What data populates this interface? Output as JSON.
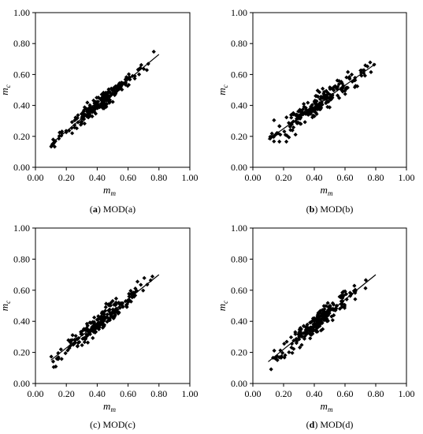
{
  "chart_data": [
    {
      "id": "a",
      "type": "scatter",
      "caption_letter": "a",
      "caption_text": "MOD(a)",
      "caption_letter_bold": true,
      "xlabel_main": "m",
      "xlabel_sub": "m",
      "ylabel_main": "m",
      "ylabel_sub": "c",
      "xlim": [
        0,
        1
      ],
      "ylim": [
        0,
        1
      ],
      "xticks": [
        "0.00",
        "0.20",
        "0.40",
        "0.60",
        "0.80",
        "1.00"
      ],
      "yticks": [
        "0.00",
        "0.20",
        "0.40",
        "0.60",
        "0.80",
        "1.00"
      ],
      "trendline": {
        "x1": 0.1,
        "y1": 0.15,
        "x2": 0.8,
        "y2": 0.73
      },
      "spread": 0.052,
      "seed": 11
    },
    {
      "id": "b",
      "type": "scatter",
      "caption_letter": "b",
      "caption_text": "MOD(b)",
      "caption_letter_bold": true,
      "xlabel_main": "m",
      "xlabel_sub": "m",
      "ylabel_main": "m",
      "ylabel_sub": "c",
      "xlim": [
        0,
        1
      ],
      "ylim": [
        0,
        1
      ],
      "xticks": [
        "0.00",
        "0.20",
        "0.40",
        "0.60",
        "0.80",
        "1.00"
      ],
      "yticks": [
        "0.00",
        "0.20",
        "0.40",
        "0.60",
        "0.80",
        "1.00"
      ],
      "trendline": {
        "x1": 0.1,
        "y1": 0.18,
        "x2": 0.8,
        "y2": 0.67
      },
      "spread": 0.075,
      "seed": 23
    },
    {
      "id": "c",
      "type": "scatter",
      "caption_letter": "c",
      "caption_text": "MOD(c)",
      "caption_letter_bold": false,
      "xlabel_main": "m",
      "xlabel_sub": "m",
      "ylabel_main": "m",
      "ylabel_sub": "c",
      "xlim": [
        0,
        1
      ],
      "ylim": [
        0,
        1
      ],
      "xticks": [
        "0.00",
        "0.20",
        "0.40",
        "0.60",
        "0.80",
        "1.00"
      ],
      "yticks": [
        "0.00",
        "0.20",
        "0.40",
        "0.60",
        "0.80",
        "1.00"
      ],
      "trendline": {
        "x1": 0.1,
        "y1": 0.15,
        "x2": 0.8,
        "y2": 0.7
      },
      "spread": 0.065,
      "seed": 37
    },
    {
      "id": "d",
      "type": "scatter",
      "caption_letter": "d",
      "caption_text": "MOD(d)",
      "caption_letter_bold": true,
      "xlabel_main": "m",
      "xlabel_sub": "m",
      "ylabel_main": "m",
      "ylabel_sub": "c",
      "xlim": [
        0,
        1
      ],
      "ylim": [
        0,
        1
      ],
      "xticks": [
        "0.00",
        "0.20",
        "0.40",
        "0.60",
        "0.80",
        "1.00"
      ],
      "yticks": [
        "0.00",
        "0.20",
        "0.40",
        "0.60",
        "0.80",
        "1.00"
      ],
      "trendline": {
        "x1": 0.1,
        "y1": 0.14,
        "x2": 0.8,
        "y2": 0.7
      },
      "spread": 0.065,
      "seed": 53
    }
  ]
}
